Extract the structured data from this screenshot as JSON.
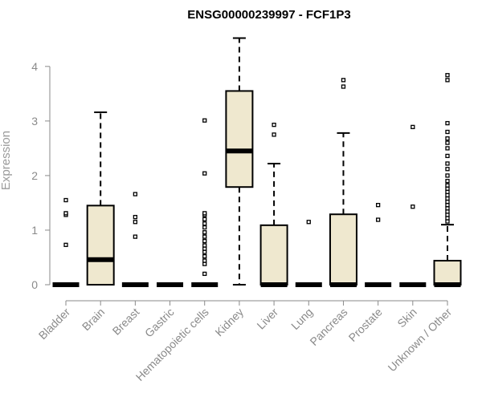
{
  "chart_data": {
    "type": "box",
    "title": "ENSG00000239997 - FCF1P3",
    "ylabel": "Expression",
    "ylim": [
      0,
      4.6
    ],
    "yticks": [
      0,
      1,
      2,
      3,
      4
    ],
    "box_fill": "#efe8cf",
    "box_stroke": "#000000",
    "axis_color": "#8a8a8a",
    "categories": [
      "Bladder",
      "Brain",
      "Breast",
      "Gastric",
      "Hematopoietic cells",
      "Kidney",
      "Liver",
      "Lung",
      "Pancreas",
      "Prostate",
      "Skin",
      "Unknown / Other"
    ],
    "boxes": [
      {
        "q1": 0,
        "median": 0,
        "q3": 0,
        "whisker_low": 0,
        "whisker_high": 0,
        "outliers": [
          0.73,
          1.28,
          1.31,
          1.55
        ]
      },
      {
        "q1": 0,
        "median": 0.46,
        "q3": 1.45,
        "whisker_low": 0,
        "whisker_high": 3.16,
        "outliers": []
      },
      {
        "q1": 0,
        "median": 0,
        "q3": 0,
        "whisker_low": 0,
        "whisker_high": 0,
        "outliers": [
          0.88,
          1.15,
          1.24,
          1.66
        ]
      },
      {
        "q1": 0,
        "median": 0,
        "q3": 0,
        "whisker_low": 0,
        "whisker_high": 0,
        "outliers": []
      },
      {
        "q1": 0,
        "median": 0,
        "q3": 0,
        "whisker_low": 0,
        "whisker_high": 0,
        "outliers": [
          0.2,
          0.38,
          0.44,
          0.52,
          0.6,
          0.66,
          0.72,
          0.8,
          0.88,
          0.96,
          1.05,
          1.12,
          1.2,
          1.28,
          1.31,
          2.04,
          3.01
        ]
      },
      {
        "q1": 1.79,
        "median": 2.45,
        "q3": 3.55,
        "whisker_low": 0,
        "whisker_high": 4.52,
        "outliers": []
      },
      {
        "q1": 0,
        "median": 0,
        "q3": 1.09,
        "whisker_low": 0,
        "whisker_high": 2.22,
        "outliers": [
          2.75,
          2.93
        ]
      },
      {
        "q1": 0,
        "median": 0,
        "q3": 0,
        "whisker_low": 0,
        "whisker_high": 0,
        "outliers": [
          1.15
        ]
      },
      {
        "q1": 0,
        "median": 0,
        "q3": 1.29,
        "whisker_low": 0,
        "whisker_high": 2.78,
        "outliers": [
          3.63,
          3.75
        ]
      },
      {
        "q1": 0,
        "median": 0,
        "q3": 0,
        "whisker_low": 0,
        "whisker_high": 0,
        "outliers": [
          1.19,
          1.46
        ]
      },
      {
        "q1": 0,
        "median": 0,
        "q3": 0,
        "whisker_low": 0,
        "whisker_high": 0,
        "outliers": [
          1.43,
          2.89
        ]
      },
      {
        "q1": 0,
        "median": 0,
        "q3": 0.44,
        "whisker_low": 0,
        "whisker_high": 1.1,
        "outliers": [
          1.16,
          1.22,
          1.28,
          1.34,
          1.4,
          1.46,
          1.52,
          1.58,
          1.64,
          1.7,
          1.76,
          1.82,
          1.9,
          2.0,
          2.12,
          2.22,
          2.36,
          2.5,
          2.6,
          2.68,
          2.8,
          2.96,
          3.75,
          3.84
        ]
      }
    ]
  }
}
